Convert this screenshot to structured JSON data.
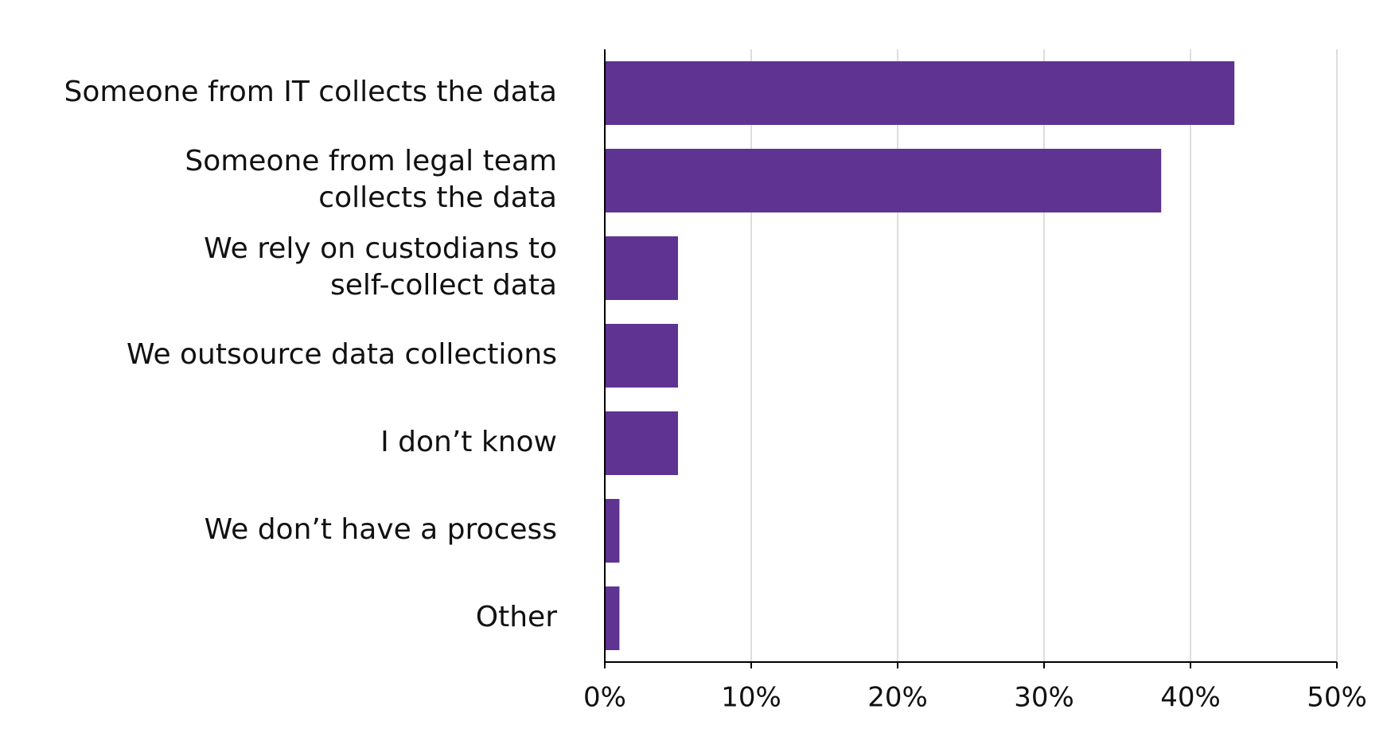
{
  "chart_data": {
    "type": "bar",
    "orientation": "horizontal",
    "categories": [
      "Someone from IT collects the data",
      "Someone from legal team collects the data",
      "We rely on custodians to self-collect data",
      "We outsource data collections",
      "I don’t know",
      "We don’t have a process",
      "Other"
    ],
    "category_lines": [
      [
        "Someone from IT collects the data"
      ],
      [
        "Someone from legal team",
        "collects the data"
      ],
      [
        "We rely on custodians to",
        "self-collect data"
      ],
      [
        "We outsource data collections"
      ],
      [
        "I don’t know"
      ],
      [
        "We don’t have a process"
      ],
      [
        "Other"
      ]
    ],
    "values": [
      43,
      38,
      5,
      5,
      5,
      1,
      1
    ],
    "xlim": [
      0,
      50
    ],
    "xticks": [
      0,
      10,
      20,
      30,
      40,
      50
    ],
    "tick_labels": [
      "0%",
      "10%",
      "20%",
      "30%",
      "40%",
      "50%"
    ],
    "title": "",
    "xlabel": "",
    "ylabel": "",
    "grid": "vertical",
    "legend": "none",
    "colors": {
      "bar": "#5e3391",
      "grid": "#dddddd",
      "axis": "#000000",
      "text": "#111111"
    }
  }
}
